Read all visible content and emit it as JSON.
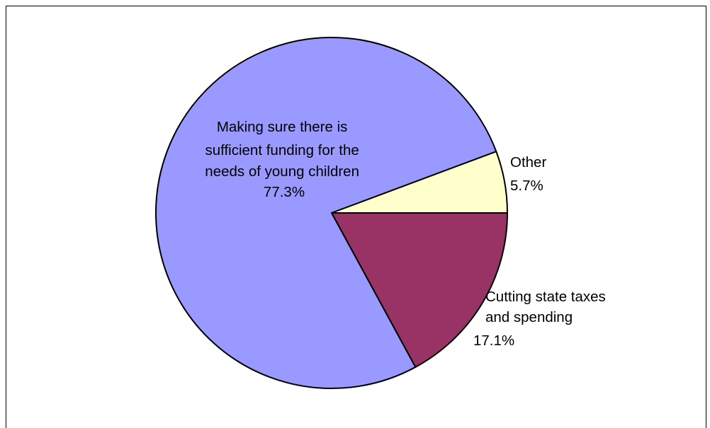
{
  "chart_data": {
    "type": "pie",
    "title": "",
    "start_angle_deg": 0,
    "direction": "clockwise",
    "slices": [
      {
        "label_lines": [
          "Cutting state taxes",
          "and spending"
        ],
        "value_label": "17.1%",
        "value": 17.1,
        "color": "#993366"
      },
      {
        "label_lines": [
          "Making sure there is",
          "sufficient funding for the",
          "needs of young children"
        ],
        "value_label": "77.3%",
        "value": 77.3,
        "color": "#9999FF"
      },
      {
        "label_lines": [
          "Other"
        ],
        "value_label": "5.7%",
        "value": 5.7,
        "color": "#FFFFCC"
      }
    ]
  }
}
